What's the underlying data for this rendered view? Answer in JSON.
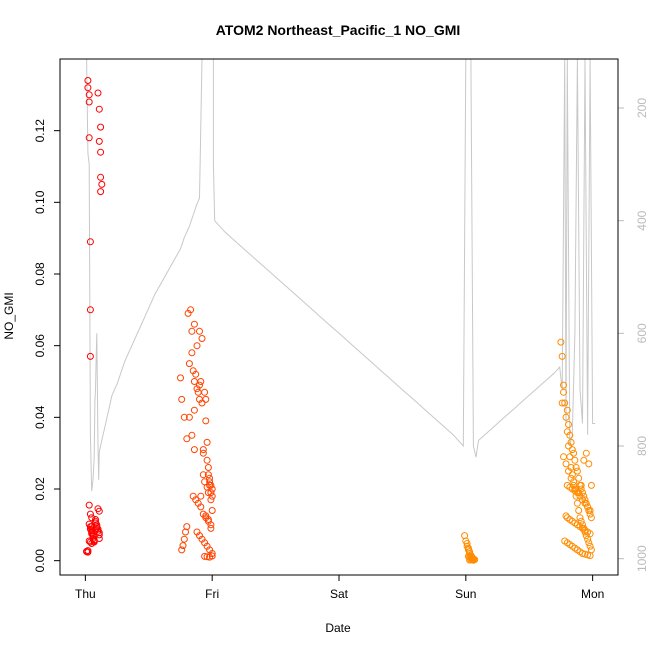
{
  "chart_data": {
    "type": "scatter",
    "title": "ATOM2 Northeast_Pacific_1 NO_GMI",
    "xlabel": "Date",
    "ylabel": "NO_GMI",
    "x_ticks": [
      {
        "t": 0.0,
        "label": "Thu"
      },
      {
        "t": 1.0,
        "label": "Fri"
      },
      {
        "t": 2.0,
        "label": "Sat"
      },
      {
        "t": 3.0,
        "label": "Sun"
      },
      {
        "t": 4.0,
        "label": "Mon"
      }
    ],
    "xlim": [
      -0.2,
      4.2
    ],
    "ylim": [
      -0.004,
      0.14
    ],
    "y_ticks": [
      0.0,
      0.02,
      0.04,
      0.06,
      0.08,
      0.1,
      0.12
    ],
    "y_tick_labels": [
      "0.00",
      "0.02",
      "0.04",
      "0.06",
      "0.08",
      "0.10",
      "0.12"
    ],
    "right_axis": {
      "ticks": [
        200,
        400,
        600,
        800,
        1000
      ],
      "range": [
        113,
        1029
      ],
      "color": "#bbbbbb"
    },
    "colors": {
      "early": "#ff0000",
      "mid": "#ff5500",
      "late": "#ff8c00",
      "pressure": "#c8c8c8"
    },
    "series": [
      {
        "color": "#ff0000",
        "x": [
          0.02,
          0.02,
          0.03,
          0.03,
          0.03,
          0.04,
          0.04,
          0.04,
          0.05,
          0.05,
          0.03,
          0.04,
          0.05,
          0.1,
          0.11,
          0.12,
          0.12,
          0.11,
          0.12,
          0.13,
          0.12,
          0.03,
          0.04,
          0.04,
          0.05,
          0.05,
          0.05,
          0.06,
          0.06,
          0.06,
          0.07,
          0.07,
          0.07,
          0.08,
          0.08,
          0.08,
          0.09,
          0.09,
          0.09,
          0.1,
          0.1,
          0.11,
          0.11,
          0.11,
          0.03,
          0.04,
          0.05,
          0.1,
          0.11,
          0.02,
          0.01,
          0.01,
          0.02
        ],
        "y": [
          0.134,
          0.132,
          0.13,
          0.128,
          0.118,
          0.089,
          0.07,
          0.057,
          0.0095,
          0.0085,
          0.0155,
          0.013,
          0.012,
          0.1305,
          0.126,
          0.121,
          0.114,
          0.117,
          0.107,
          0.105,
          0.103,
          0.0102,
          0.0095,
          0.0088,
          0.0082,
          0.0078,
          0.0075,
          0.0072,
          0.0068,
          0.0062,
          0.0058,
          0.0055,
          0.0052,
          0.0115,
          0.011,
          0.0105,
          0.01,
          0.0095,
          0.009,
          0.0088,
          0.0082,
          0.0078,
          0.0072,
          0.0062,
          0.0055,
          0.0052,
          0.0048,
          0.0145,
          0.0138,
          0.0028,
          0.0026,
          0.0025,
          0.0024
        ]
      },
      {
        "color": "#ff4400",
        "x": [
          0.75,
          0.76,
          0.78,
          0.8,
          0.81,
          0.83,
          0.84,
          0.85,
          0.86,
          0.86,
          0.84,
          0.82,
          0.86,
          0.87,
          0.88,
          0.89,
          0.9,
          0.9,
          0.91,
          0.92,
          0.93,
          0.93,
          0.94,
          0.95,
          0.95,
          0.96,
          0.96,
          0.97,
          0.97,
          0.98,
          0.98,
          0.99,
          0.99,
          1.0,
          1.0,
          0.85,
          0.87,
          0.89,
          0.91,
          0.93,
          0.95,
          0.97,
          0.99,
          0.88,
          0.9,
          0.92,
          0.94,
          0.96,
          0.98,
          1.0,
          0.94,
          0.96,
          0.98,
          1.0,
          0.92,
          0.9,
          0.86,
          0.88,
          0.84,
          0.82,
          0.8,
          0.79,
          0.78,
          0.77,
          0.76,
          0.94,
          0.96,
          0.98,
          0.97,
          0.99,
          1.0,
          0.95,
          0.97,
          0.99,
          0.93,
          0.91
        ],
        "y": [
          0.051,
          0.045,
          0.04,
          0.034,
          0.069,
          0.07,
          0.064,
          0.053,
          0.05,
          0.042,
          0.035,
          0.04,
          0.031,
          0.052,
          0.048,
          0.047,
          0.049,
          0.045,
          0.05,
          0.044,
          0.03,
          0.031,
          0.047,
          0.039,
          0.045,
          0.028,
          0.033,
          0.024,
          0.026,
          0.022,
          0.023,
          0.021,
          0.019,
          0.02,
          0.018,
          0.018,
          0.017,
          0.016,
          0.015,
          0.013,
          0.012,
          0.011,
          0.01,
          0.008,
          0.007,
          0.006,
          0.005,
          0.004,
          0.003,
          0.002,
          0.0012,
          0.0011,
          0.001,
          0.0013,
          0.062,
          0.064,
          0.066,
          0.06,
          0.058,
          0.055,
          0.0095,
          0.008,
          0.006,
          0.0042,
          0.003,
          0.022,
          0.0205,
          0.021,
          0.019,
          0.017,
          0.014,
          0.0125,
          0.0115,
          0.009,
          0.024,
          0.018
        ]
      },
      {
        "color": "#ff8c00",
        "x": [
          2.99,
          3.0,
          3.01,
          3.01,
          3.02,
          3.02,
          3.03,
          3.03,
          3.04,
          3.04,
          3.05,
          3.05,
          3.06,
          3.06,
          3.07,
          3.02,
          3.03,
          3.04,
          3.05,
          3.06,
          3.04,
          3.05,
          3.03,
          3.06
        ],
        "y": [
          0.007,
          0.0055,
          0.0048,
          0.004,
          0.0035,
          0.003,
          0.0025,
          0.002,
          0.0015,
          0.0012,
          0.0009,
          0.0007,
          0.0005,
          0.0004,
          0.0003,
          0.0012,
          0.001,
          0.0008,
          0.0006,
          0.0004,
          0.0002,
          0.0003,
          0.0002,
          0.0001
        ]
      },
      {
        "color": "#ff8c00",
        "x": [
          3.75,
          3.76,
          3.77,
          3.77,
          3.76,
          3.78,
          3.79,
          3.8,
          3.81,
          3.82,
          3.83,
          3.84,
          3.85,
          3.86,
          3.87,
          3.88,
          3.89,
          3.9,
          3.91,
          3.92,
          3.93,
          3.94,
          3.95,
          3.96,
          3.97,
          3.98,
          3.99,
          3.8,
          3.81,
          3.82,
          3.83,
          3.84,
          3.85,
          3.86,
          3.87,
          3.88,
          3.89,
          3.9,
          3.91,
          3.92,
          3.93,
          3.94,
          3.95,
          3.96,
          3.97,
          3.98,
          3.99,
          3.79,
          3.8,
          3.82,
          3.84,
          3.86,
          3.88,
          3.9,
          3.92,
          3.94,
          3.96,
          3.98,
          3.78,
          3.8,
          3.82,
          3.84,
          3.86,
          3.88,
          3.9,
          3.92,
          3.94,
          3.96,
          3.98,
          3.8,
          3.82,
          3.84,
          3.86,
          3.88,
          3.9,
          3.92,
          3.94,
          3.96,
          3.98,
          3.77,
          3.79,
          3.81,
          3.83,
          3.85,
          3.87,
          3.89,
          3.91,
          3.93,
          3.95,
          3.97,
          3.99
        ],
        "y": [
          0.061,
          0.057,
          0.049,
          0.047,
          0.044,
          0.044,
          0.04,
          0.036,
          0.032,
          0.029,
          0.026,
          0.024,
          0.022,
          0.02,
          0.018,
          0.016,
          0.014,
          0.012,
          0.011,
          0.01,
          0.009,
          0.008,
          0.007,
          0.006,
          0.005,
          0.004,
          0.003,
          0.042,
          0.038,
          0.035,
          0.033,
          0.031,
          0.03,
          0.028,
          0.026,
          0.025,
          0.023,
          0.021,
          0.02,
          0.019,
          0.018,
          0.017,
          0.016,
          0.015,
          0.014,
          0.013,
          0.012,
          0.0125,
          0.012,
          0.0115,
          0.011,
          0.0105,
          0.01,
          0.0095,
          0.009,
          0.0085,
          0.008,
          0.0075,
          0.0055,
          0.005,
          0.0045,
          0.004,
          0.0035,
          0.003,
          0.0025,
          0.002,
          0.0018,
          0.0016,
          0.0014,
          0.021,
          0.0205,
          0.02,
          0.0195,
          0.019,
          0.018,
          0.017,
          0.016,
          0.015,
          0.014,
          0.029,
          0.027,
          0.025,
          0.023,
          0.021,
          0.02,
          0.019,
          0.021,
          0.028,
          0.03,
          0.027,
          0.021
        ]
      }
    ],
    "pressure_line": {
      "color": "#c8c8c8",
      "x": [
        0.0,
        0.01,
        0.02,
        0.03,
        0.04,
        0.05,
        0.06,
        0.07,
        0.075,
        0.08,
        0.085,
        0.09,
        0.095,
        0.1,
        0.105,
        0.11,
        0.12,
        0.13,
        0.14,
        0.15,
        0.16,
        0.17,
        0.18,
        0.19,
        0.2,
        0.21,
        0.23,
        0.25,
        0.28,
        0.31,
        0.35,
        0.39,
        0.43,
        0.47,
        0.51,
        0.55,
        0.6,
        0.65,
        0.7,
        0.75,
        0.78,
        0.82,
        0.85,
        0.88,
        0.9,
        0.92,
        0.93,
        0.94,
        0.95,
        0.96,
        0.97,
        0.98,
        0.99,
        1.0,
        1.01,
        1.01,
        1.02,
        1.1,
        1.2,
        1.3,
        1.4,
        1.5,
        1.6,
        1.7,
        1.8,
        1.9,
        2.0,
        2.1,
        2.2,
        2.3,
        2.4,
        2.5,
        2.6,
        2.7,
        2.8,
        2.9,
        2.98,
        3.0,
        3.02,
        3.04,
        3.06,
        3.08,
        3.1,
        3.2,
        3.3,
        3.4,
        3.5,
        3.6,
        3.7,
        3.74,
        3.76,
        3.78,
        3.79,
        3.8,
        3.82,
        3.84,
        3.86,
        3.88,
        3.9,
        3.92,
        3.94,
        3.96,
        3.98,
        4.0,
        4.02
      ],
      "p": [
        113,
        113,
        280,
        300,
        780,
        880,
        860,
        820,
        720,
        700,
        650,
        600,
        700,
        800,
        860,
        810,
        800,
        790,
        780,
        770,
        760,
        750,
        740,
        730,
        720,
        710,
        700,
        690,
        670,
        650,
        630,
        610,
        590,
        570,
        550,
        530,
        510,
        490,
        470,
        450,
        430,
        410,
        390,
        370,
        360,
        113,
        113,
        113,
        113,
        113,
        113,
        113,
        113,
        113,
        113,
        300,
        400,
        420,
        440,
        460,
        480,
        500,
        520,
        540,
        560,
        580,
        600,
        620,
        640,
        660,
        680,
        700,
        720,
        740,
        760,
        780,
        800,
        113,
        113,
        113,
        800,
        820,
        790,
        770,
        750,
        730,
        710,
        690,
        670,
        660,
        700,
        113,
        760,
        113,
        800,
        780,
        600,
        113,
        700,
        760,
        113,
        780,
        113,
        760,
        760
      ]
    }
  }
}
